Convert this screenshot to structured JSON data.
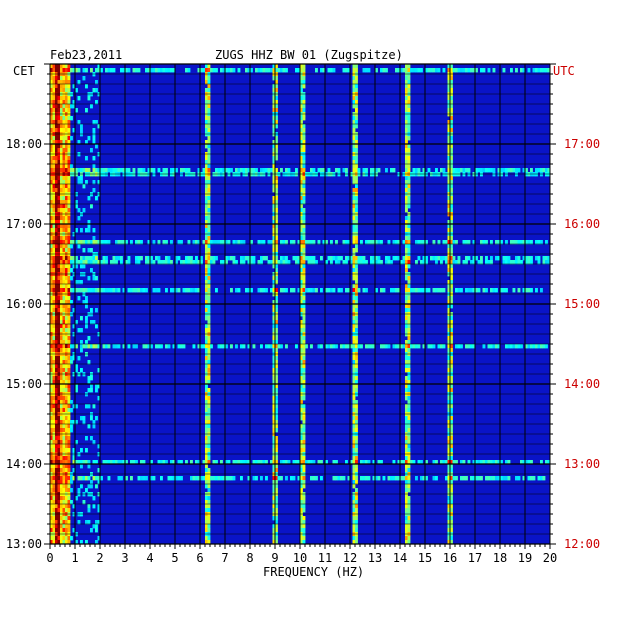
{
  "header": {
    "date": "Feb23,2011",
    "station": "ZUGS HHZ BW 01 (Zugspitze)"
  },
  "colors": {
    "background": "#ffffff",
    "plot_background": "#0a14c8",
    "gridline": "#000000",
    "left_labels": "#000000",
    "right_labels": "#cc0000"
  },
  "chart_data": {
    "type": "heatmap",
    "title": "ZUGS HHZ BW 01 (Zugspitze)",
    "date_label": "Feb23,2011",
    "xlabel": "FREQUENCY (HZ)",
    "x_ticks": [
      "0",
      "1",
      "2",
      "3",
      "4",
      "5",
      "6",
      "7",
      "8",
      "9",
      "10",
      "11",
      "12",
      "13",
      "14",
      "15",
      "16",
      "17",
      "18",
      "19",
      "20"
    ],
    "xlim": [
      0,
      20
    ],
    "left_axis_title": "CET",
    "right_axis_title": "UTC",
    "left_time_ticks": [
      "18:00",
      "17:00",
      "16:00",
      "15:00",
      "14:00",
      "13:00"
    ],
    "right_time_ticks": [
      "17:00",
      "16:00",
      "15:00",
      "14:00",
      "13:00",
      "12:00"
    ],
    "time_range_cet": [
      "13:00",
      "19:00"
    ],
    "colormap": "jet",
    "notable_energy_bands_hz": [
      0.3,
      6.3,
      9.0,
      10.1,
      12.2,
      14.3,
      16.0
    ],
    "grid": true
  }
}
